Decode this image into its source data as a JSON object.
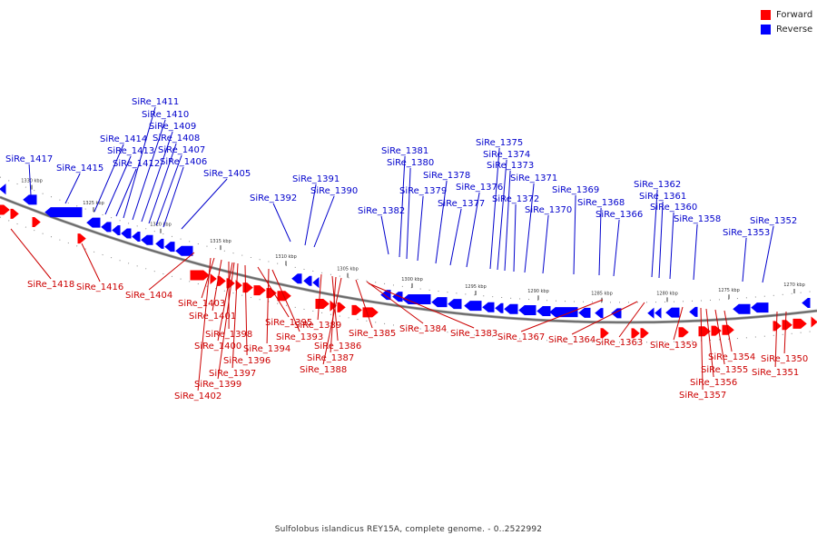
{
  "legend": {
    "items": [
      {
        "label": "Forward",
        "color": "#ff0000"
      },
      {
        "label": "Reverse",
        "color": "#0000ff"
      }
    ]
  },
  "caption": "Sulfolobus islandicus REY15A, complete genome. - 0..2522992",
  "colors": {
    "forward": "#ff0000",
    "reverse": "#0000ff",
    "label_forward": "#cc0000",
    "label_reverse": "#0000cc",
    "backbone": "#666666"
  },
  "ticks": [
    "1330 kbp",
    "1325 kbp",
    "1320 kbp",
    "1315 kbp",
    "1310 kbp",
    "1305 kbp",
    "1300 kbp",
    "1295 kbp",
    "1290 kbp",
    "1285 kbp",
    "1280 kbp",
    "1275 kbp",
    "1270 kbp"
  ],
  "genes": {
    "forward": [
      "SiRe_1418",
      "SiRe_1416",
      "SiRe_1404",
      "SiRe_1403",
      "SiRe_1401",
      "SiRe_1398",
      "SiRe_1400",
      "SiRe_1396",
      "SiRe_1397",
      "SiRe_1399",
      "SiRe_1402",
      "SiRe_1395",
      "SiRe_1393",
      "SiRe_1394",
      "SiRe_1389",
      "SiRe_1386",
      "SiRe_1387",
      "SiRe_1388",
      "SiRe_1385",
      "SiRe_1384",
      "SiRe_1383",
      "SiRe_1367",
      "SiRe_1364",
      "SiRe_1363",
      "SiRe_1359",
      "SiRe_1354",
      "SiRe_1355",
      "SiRe_1356",
      "SiRe_1357",
      "SiRe_1350",
      "SiRe_1351"
    ],
    "reverse": [
      "SiRe_1417",
      "SiRe_1415",
      "SiRe_1414",
      "SiRe_1413",
      "SiRe_1412",
      "SiRe_1411",
      "SiRe_1410",
      "SiRe_1409",
      "SiRe_1408",
      "SiRe_1407",
      "SiRe_1406",
      "SiRe_1405",
      "SiRe_1392",
      "SiRe_1391",
      "SiRe_1390",
      "SiRe_1382",
      "SiRe_1381",
      "SiRe_1380",
      "SiRe_1379",
      "SiRe_1378",
      "SiRe_1377",
      "SiRe_1376",
      "SiRe_1375",
      "SiRe_1374",
      "SiRe_1373",
      "SiRe_1372",
      "SiRe_1371",
      "SiRe_1370",
      "SiRe_1369",
      "SiRe_1368",
      "SiRe_1366",
      "SiRe_1362",
      "SiRe_1361",
      "SiRe_1360",
      "SiRe_1358",
      "SiRe_1353",
      "SiRe_1352"
    ]
  }
}
